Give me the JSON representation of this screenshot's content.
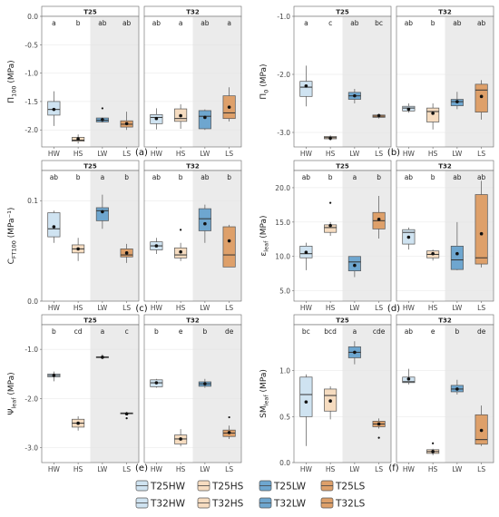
{
  "colors": {
    "HW": "#cfe3f1",
    "HS": "#f6dcc0",
    "LW": "#6ea6cf",
    "LS": "#dea06a",
    "shade": "#ebebeb",
    "strip": "#ffffff",
    "border": "#666666",
    "median": "#333333"
  },
  "legend": {
    "items": [
      {
        "label": "T25HW",
        "key": "HW"
      },
      {
        "label": "T25HS",
        "key": "HS"
      },
      {
        "label": "T25LW",
        "key": "LW"
      },
      {
        "label": "T25LS",
        "key": "LS"
      },
      {
        "label": "T32HW",
        "key": "HW"
      },
      {
        "label": "T32HS",
        "key": "HS"
      },
      {
        "label": "T32LW",
        "key": "LW"
      },
      {
        "label": "T32LS",
        "key": "LS"
      }
    ]
  },
  "chart_data": [
    {
      "type": "boxplot",
      "panel_label": "(a)",
      "ylabel": "Π100 (MPa)",
      "ylabel_base": "Π",
      "ylabel_sub": "100",
      "ylabel_rest": " (MPa)",
      "ylim": [
        -2.3,
        0.0
      ],
      "yticks": [
        0.0,
        -0.5,
        -1.0,
        -1.5,
        -2.0
      ],
      "categories": [
        "HW",
        "HS",
        "LW",
        "LS"
      ],
      "facets": [
        "T25",
        "T32"
      ],
      "groups": {
        "T25": [
          {
            "cat": "HW",
            "q1": -1.74,
            "median": -1.64,
            "q3": -1.5,
            "min": -1.93,
            "max": -1.32,
            "mean": -1.64,
            "letter": "a",
            "outliers": []
          },
          {
            "cat": "HS",
            "q1": -2.2,
            "median": -2.18,
            "q3": -2.13,
            "min": -2.24,
            "max": -2.08,
            "mean": -2.16,
            "letter": "b",
            "outliers": []
          },
          {
            "cat": "LW",
            "q1": -1.86,
            "median": -1.83,
            "q3": -1.79,
            "min": -1.87,
            "max": -1.78,
            "mean": -1.82,
            "letter": "ab",
            "outliers": [
              -1.62
            ]
          },
          {
            "cat": "LS",
            "q1": -1.95,
            "median": -1.9,
            "q3": -1.84,
            "min": -2.0,
            "max": -1.68,
            "mean": -1.89,
            "letter": "ab",
            "outliers": []
          }
        ],
        "T32": [
          {
            "cat": "HW",
            "q1": -1.89,
            "median": -1.78,
            "q3": -1.73,
            "min": -1.99,
            "max": -1.62,
            "mean": -1.8,
            "letter": "ab",
            "outliers": []
          },
          {
            "cat": "HS",
            "q1": -1.85,
            "median": -1.8,
            "q3": -1.63,
            "min": -1.98,
            "max": -1.55,
            "mean": -1.75,
            "letter": "a",
            "outliers": []
          },
          {
            "cat": "LW",
            "q1": -1.98,
            "median": -1.76,
            "q3": -1.66,
            "min": -2.0,
            "max": -1.64,
            "mean": -1.78,
            "letter": "ab",
            "outliers": []
          },
          {
            "cat": "LS",
            "q1": -1.8,
            "median": -1.7,
            "q3": -1.4,
            "min": -1.85,
            "max": -1.25,
            "mean": -1.6,
            "letter": "a",
            "outliers": []
          }
        ]
      }
    },
    {
      "type": "boxplot",
      "panel_label": "(b)",
      "ylabel": "Π0 (MPa)",
      "ylabel_base": "Π",
      "ylabel_sub": "0",
      "ylabel_rest": " (MPa)",
      "ylim": [
        -3.25,
        -1.0
      ],
      "yticks": [
        -1.0,
        -2.0,
        -3.0
      ],
      "categories": [
        "HW",
        "HS",
        "LW",
        "LS"
      ],
      "facets": [
        "T25",
        "T32"
      ],
      "groups": {
        "T25": [
          {
            "cat": "HW",
            "q1": -2.38,
            "median": -2.22,
            "q3": -2.12,
            "min": -2.55,
            "max": -1.85,
            "mean": -2.2,
            "letter": "a",
            "outliers": []
          },
          {
            "cat": "HS",
            "q1": -3.11,
            "median": -3.09,
            "q3": -3.07,
            "min": -3.14,
            "max": -3.05,
            "mean": -3.1,
            "letter": "c",
            "outliers": []
          },
          {
            "cat": "LW",
            "q1": -2.43,
            "median": -2.37,
            "q3": -2.31,
            "min": -2.5,
            "max": -2.25,
            "mean": -2.37,
            "letter": "ab",
            "outliers": []
          },
          {
            "cat": "LS",
            "q1": -2.74,
            "median": -2.72,
            "q3": -2.7,
            "min": -2.76,
            "max": -2.68,
            "mean": -2.71,
            "letter": "bc",
            "outliers": []
          }
        ],
        "T32": [
          {
            "cat": "HW",
            "q1": -2.63,
            "median": -2.58,
            "q3": -2.55,
            "min": -2.66,
            "max": -2.5,
            "mean": -2.6,
            "letter": "ab",
            "outliers": []
          },
          {
            "cat": "HS",
            "q1": -2.82,
            "median": -2.64,
            "q3": -2.58,
            "min": -2.95,
            "max": -2.5,
            "mean": -2.67,
            "letter": "b",
            "outliers": []
          },
          {
            "cat": "LW",
            "q1": -2.54,
            "median": -2.47,
            "q3": -2.43,
            "min": -2.6,
            "max": -2.3,
            "mean": -2.47,
            "letter": "ab",
            "outliers": []
          },
          {
            "cat": "LS",
            "q1": -2.65,
            "median": -2.27,
            "q3": -2.17,
            "min": -2.78,
            "max": -2.1,
            "mean": -2.38,
            "letter": "ab",
            "outliers": []
          }
        ]
      }
    },
    {
      "type": "boxplot",
      "panel_label": "(c)",
      "ylabel": "CFT100 (MPa⁻¹)",
      "ylabel_base": "C",
      "ylabel_sub": "FT100",
      "ylabel_rest": " (MPa⁻¹)",
      "ylim": [
        0.0,
        0.13
      ],
      "yticks": [
        0.0,
        0.1
      ],
      "categories": [
        "HW",
        "HS",
        "LW",
        "LS"
      ],
      "facets": [
        "T25",
        "T32"
      ],
      "groups": {
        "T25": [
          {
            "cat": "HW",
            "q1": 0.064,
            "median": 0.072,
            "q3": 0.088,
            "min": 0.058,
            "max": 0.09,
            "mean": 0.074,
            "letter": "ab",
            "outliers": []
          },
          {
            "cat": "HS",
            "q1": 0.048,
            "median": 0.052,
            "q3": 0.056,
            "min": 0.04,
            "max": 0.063,
            "mean": 0.052,
            "letter": "b",
            "outliers": []
          },
          {
            "cat": "LW",
            "q1": 0.08,
            "median": 0.09,
            "q3": 0.093,
            "min": 0.072,
            "max": 0.106,
            "mean": 0.089,
            "letter": "a",
            "outliers": []
          },
          {
            "cat": "LS",
            "q1": 0.044,
            "median": 0.046,
            "q3": 0.052,
            "min": 0.038,
            "max": 0.057,
            "mean": 0.048,
            "letter": "b",
            "outliers": []
          }
        ],
        "T32": [
          {
            "cat": "HW",
            "q1": 0.051,
            "median": 0.055,
            "q3": 0.059,
            "min": 0.047,
            "max": 0.063,
            "mean": 0.055,
            "letter": "ab",
            "outliers": []
          },
          {
            "cat": "HS",
            "q1": 0.043,
            "median": 0.046,
            "q3": 0.053,
            "min": 0.04,
            "max": 0.058,
            "mean": 0.049,
            "letter": "b",
            "outliers": [
              0.071
            ]
          },
          {
            "cat": "LW",
            "q1": 0.07,
            "median": 0.082,
            "q3": 0.092,
            "min": 0.058,
            "max": 0.096,
            "mean": 0.077,
            "letter": "ab",
            "outliers": []
          },
          {
            "cat": "LS",
            "q1": 0.034,
            "median": 0.046,
            "q3": 0.074,
            "min": 0.034,
            "max": 0.076,
            "mean": 0.06,
            "letter": "b",
            "outliers": []
          }
        ]
      }
    },
    {
      "type": "boxplot",
      "panel_label": "(d)",
      "ylabel": "εleaf (MPa)",
      "ylabel_base": "ε",
      "ylabel_sub": "leaf",
      "ylabel_rest": " (MPa)",
      "ylim": [
        3.5,
        22.5
      ],
      "yticks": [
        5.0,
        10.0,
        15.0,
        20.0
      ],
      "categories": [
        "HW",
        "HS",
        "LW",
        "LS"
      ],
      "facets": [
        "T25",
        "T32"
      ],
      "groups": {
        "T25": [
          {
            "cat": "HW",
            "q1": 9.8,
            "median": 10.4,
            "q3": 11.5,
            "min": 8.0,
            "max": 12.0,
            "mean": 10.6,
            "letter": "ab",
            "outliers": []
          },
          {
            "cat": "HS",
            "q1": 13.5,
            "median": 14.2,
            "q3": 14.6,
            "min": 13.0,
            "max": 15.0,
            "mean": 14.5,
            "letter": "b",
            "outliers": [
              17.8
            ]
          },
          {
            "cat": "LW",
            "q1": 7.9,
            "median": 9.2,
            "q3": 10.0,
            "min": 7.0,
            "max": 10.0,
            "mean": 8.7,
            "letter": "a",
            "outliers": []
          },
          {
            "cat": "LS",
            "q1": 14.0,
            "median": 15.2,
            "q3": 16.4,
            "min": 12.6,
            "max": 18.8,
            "mean": 15.4,
            "letter": "b",
            "outliers": []
          }
        ],
        "T32": [
          {
            "cat": "HW",
            "q1": 11.8,
            "median": 13.5,
            "q3": 13.9,
            "min": 11.0,
            "max": 14.2,
            "mean": 12.8,
            "letter": "ab",
            "outliers": []
          },
          {
            "cat": "HS",
            "q1": 9.8,
            "median": 10.3,
            "q3": 10.8,
            "min": 9.4,
            "max": 11.0,
            "mean": 10.4,
            "letter": "b",
            "outliers": []
          },
          {
            "cat": "LW",
            "q1": 8.1,
            "median": 9.5,
            "q3": 11.5,
            "min": 8.0,
            "max": 15.0,
            "mean": 10.4,
            "letter": "ab",
            "outliers": []
          },
          {
            "cat": "LS",
            "q1": 8.9,
            "median": 9.8,
            "q3": 19.0,
            "min": 8.4,
            "max": 21.0,
            "mean": 13.3,
            "letter": "ab",
            "outliers": []
          }
        ]
      }
    },
    {
      "type": "boxplot",
      "panel_label": "(e)",
      "ylabel": "Ψleaf (MPa)",
      "ylabel_base": "Ψ",
      "ylabel_sub": "leaf",
      "ylabel_rest": " (MPa)",
      "ylim": [
        -3.3,
        -0.5
      ],
      "yticks": [
        -1.0,
        -2.0,
        -3.0
      ],
      "categories": [
        "HW",
        "HS",
        "LW",
        "LS"
      ],
      "facets": [
        "T25",
        "T32"
      ],
      "groups": {
        "T25": [
          {
            "cat": "HW",
            "q1": -1.56,
            "median": -1.53,
            "q3": -1.5,
            "min": -1.65,
            "max": -1.45,
            "mean": -1.53,
            "letter": "b",
            "outliers": []
          },
          {
            "cat": "HS",
            "q1": -2.58,
            "median": -2.5,
            "q3": -2.42,
            "min": -2.65,
            "max": -2.36,
            "mean": -2.5,
            "letter": "cd",
            "outliers": []
          },
          {
            "cat": "LW",
            "q1": -1.17,
            "median": -1.16,
            "q3": -1.15,
            "min": -1.2,
            "max": -1.1,
            "mean": -1.16,
            "letter": "a",
            "outliers": []
          },
          {
            "cat": "LS",
            "q1": -2.31,
            "median": -2.3,
            "q3": -2.29,
            "min": -2.32,
            "max": -2.27,
            "mean": -2.31,
            "letter": "c",
            "outliers": [
              -2.4
            ]
          }
        ],
        "T32": [
          {
            "cat": "HW",
            "q1": -1.76,
            "median": -1.68,
            "q3": -1.62,
            "min": -1.78,
            "max": -1.6,
            "mean": -1.68,
            "letter": "b",
            "outliers": []
          },
          {
            "cat": "HS",
            "q1": -2.92,
            "median": -2.82,
            "q3": -2.74,
            "min": -2.97,
            "max": -2.62,
            "mean": -2.82,
            "letter": "e",
            "outliers": []
          },
          {
            "cat": "LW",
            "q1": -1.75,
            "median": -1.7,
            "q3": -1.66,
            "min": -1.78,
            "max": -1.6,
            "mean": -1.7,
            "letter": "b",
            "outliers": []
          },
          {
            "cat": "LS",
            "q1": -2.77,
            "median": -2.7,
            "q3": -2.64,
            "min": -2.82,
            "max": -2.55,
            "mean": -2.69,
            "letter": "de",
            "outliers": [
              -2.38
            ]
          }
        ]
      }
    },
    {
      "type": "boxplot",
      "panel_label": "(f)",
      "ylabel": "SMleaf (MPa)",
      "ylabel_base": "SM",
      "ylabel_sub": "leaf",
      "ylabel_rest": " (MPa)",
      "ylim": [
        0.0,
        1.5
      ],
      "yticks": [
        0.0,
        0.5,
        1.0
      ],
      "categories": [
        "HW",
        "HS",
        "LW",
        "LS"
      ],
      "facets": [
        "T25",
        "T32"
      ],
      "groups": {
        "T25": [
          {
            "cat": "HW",
            "q1": 0.5,
            "median": 0.74,
            "q3": 0.93,
            "min": 0.18,
            "max": 0.96,
            "mean": 0.66,
            "letter": "bc",
            "outliers": []
          },
          {
            "cat": "HS",
            "q1": 0.56,
            "median": 0.73,
            "q3": 0.8,
            "min": 0.47,
            "max": 0.83,
            "mean": 0.67,
            "letter": "bcd",
            "outliers": []
          },
          {
            "cat": "LW",
            "q1": 1.14,
            "median": 1.2,
            "q3": 1.26,
            "min": 1.07,
            "max": 1.32,
            "mean": 1.2,
            "letter": "a",
            "outliers": []
          },
          {
            "cat": "LS",
            "q1": 0.39,
            "median": 0.42,
            "q3": 0.45,
            "min": 0.37,
            "max": 0.48,
            "mean": 0.42,
            "letter": "cde",
            "outliers": [
              0.27
            ]
          }
        ],
        "T32": [
          {
            "cat": "HW",
            "q1": 0.87,
            "median": 0.88,
            "q3": 0.93,
            "min": 0.85,
            "max": 1.02,
            "mean": 0.91,
            "letter": "ab",
            "outliers": []
          },
          {
            "cat": "HS",
            "q1": 0.1,
            "median": 0.12,
            "q3": 0.14,
            "min": 0.08,
            "max": 0.15,
            "mean": 0.12,
            "letter": "e",
            "outliers": [
              0.21
            ]
          },
          {
            "cat": "LW",
            "q1": 0.77,
            "median": 0.8,
            "q3": 0.84,
            "min": 0.74,
            "max": 0.9,
            "mean": 0.8,
            "letter": "b",
            "outliers": []
          },
          {
            "cat": "LS",
            "q1": 0.2,
            "median": 0.25,
            "q3": 0.52,
            "min": 0.18,
            "max": 0.62,
            "mean": 0.35,
            "letter": "de",
            "outliers": []
          }
        ]
      }
    }
  ]
}
